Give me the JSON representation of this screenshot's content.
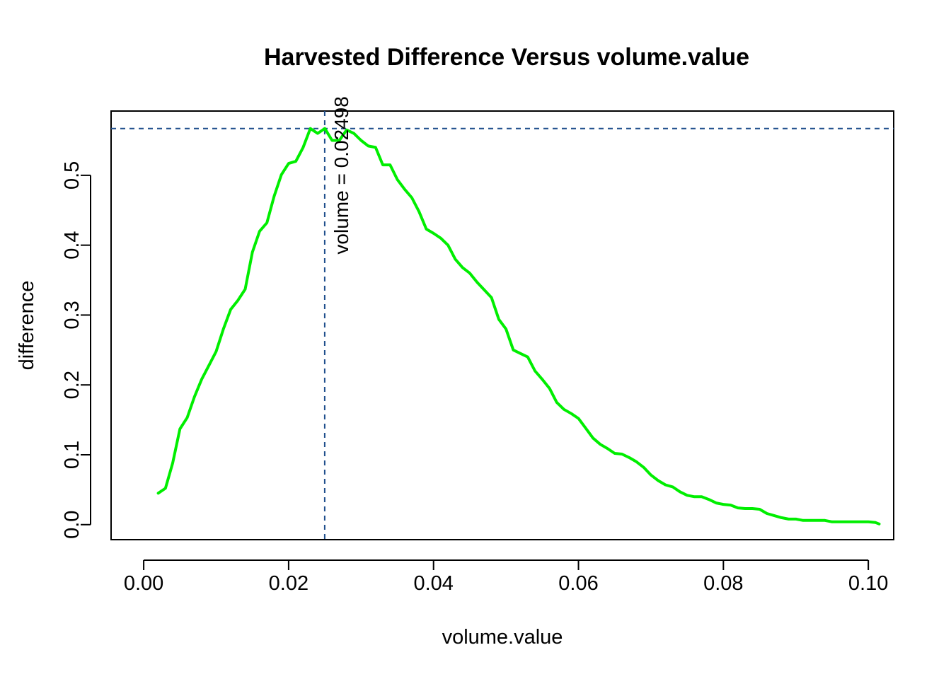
{
  "chart_data": {
    "type": "line",
    "title": "Harvested Difference Versus volume.value",
    "xlabel": "volume.value",
    "ylabel": "difference",
    "xlim": [
      -0.0045,
      0.1035
    ],
    "ylim": [
      -0.0215,
      0.592
    ],
    "x_ticks": [
      0.0,
      0.02,
      0.04,
      0.06,
      0.08,
      0.1
    ],
    "x_tick_labels": [
      "0.00",
      "0.02",
      "0.04",
      "0.06",
      "0.08",
      "0.10"
    ],
    "y_ticks": [
      0.0,
      0.1,
      0.2,
      0.3,
      0.4,
      0.5
    ],
    "y_tick_labels": [
      "0.0",
      "0.1",
      "0.2",
      "0.3",
      "0.4",
      "0.5"
    ],
    "grid": false,
    "series": [
      {
        "color": "#00ee00",
        "x": [
          0.002,
          0.003,
          0.004,
          0.005,
          0.006,
          0.007,
          0.008,
          0.009,
          0.01,
          0.011,
          0.012,
          0.013,
          0.014,
          0.015,
          0.016,
          0.017,
          0.018,
          0.019,
          0.02,
          0.021,
          0.022,
          0.023,
          0.024,
          0.025,
          0.026,
          0.027,
          0.028,
          0.029,
          0.03,
          0.031,
          0.032,
          0.033,
          0.034,
          0.035,
          0.036,
          0.037,
          0.038,
          0.039,
          0.04,
          0.041,
          0.042,
          0.043,
          0.044,
          0.045,
          0.046,
          0.047,
          0.048,
          0.049,
          0.05,
          0.051,
          0.052,
          0.053,
          0.054,
          0.055,
          0.056,
          0.057,
          0.058,
          0.059,
          0.06,
          0.061,
          0.062,
          0.063,
          0.064,
          0.065,
          0.066,
          0.067,
          0.068,
          0.069,
          0.07,
          0.071,
          0.072,
          0.073,
          0.074,
          0.075,
          0.076,
          0.077,
          0.078,
          0.079,
          0.08,
          0.081,
          0.082,
          0.083,
          0.084,
          0.085,
          0.086,
          0.087,
          0.088,
          0.089,
          0.09,
          0.091,
          0.092,
          0.093,
          0.094,
          0.095,
          0.096,
          0.097,
          0.098,
          0.099,
          0.1,
          0.101,
          0.1015
        ],
        "y": [
          0.045,
          0.052,
          0.088,
          0.137,
          0.153,
          0.183,
          0.208,
          0.228,
          0.248,
          0.28,
          0.308,
          0.321,
          0.337,
          0.39,
          0.42,
          0.432,
          0.47,
          0.501,
          0.517,
          0.52,
          0.54,
          0.567,
          0.56,
          0.567,
          0.55,
          0.55,
          0.565,
          0.56,
          0.55,
          0.542,
          0.54,
          0.515,
          0.515,
          0.494,
          0.48,
          0.468,
          0.448,
          0.423,
          0.417,
          0.41,
          0.4,
          0.38,
          0.368,
          0.36,
          0.347,
          0.336,
          0.325,
          0.294,
          0.28,
          0.25,
          0.245,
          0.24,
          0.22,
          0.208,
          0.195,
          0.175,
          0.165,
          0.159,
          0.152,
          0.138,
          0.124,
          0.115,
          0.109,
          0.102,
          0.101,
          0.096,
          0.09,
          0.082,
          0.071,
          0.063,
          0.057,
          0.054,
          0.047,
          0.042,
          0.04,
          0.04,
          0.036,
          0.031,
          0.029,
          0.028,
          0.024,
          0.023,
          0.023,
          0.022,
          0.016,
          0.013,
          0.01,
          0.008,
          0.008,
          0.006,
          0.006,
          0.006,
          0.006,
          0.004,
          0.004,
          0.004,
          0.004,
          0.004,
          0.004,
          0.003,
          0.001
        ]
      }
    ],
    "reference_lines": [
      {
        "orientation": "vertical",
        "value": 0.02498,
        "color": "#1f4e8c",
        "style": "dashed"
      },
      {
        "orientation": "horizontal",
        "value": 0.567,
        "color": "#1f4e8c",
        "style": "dashed"
      }
    ],
    "annotations": [
      {
        "text": "volume = 0.02498",
        "x": 0.0275,
        "y": 0.5,
        "rotation": -90
      }
    ]
  }
}
